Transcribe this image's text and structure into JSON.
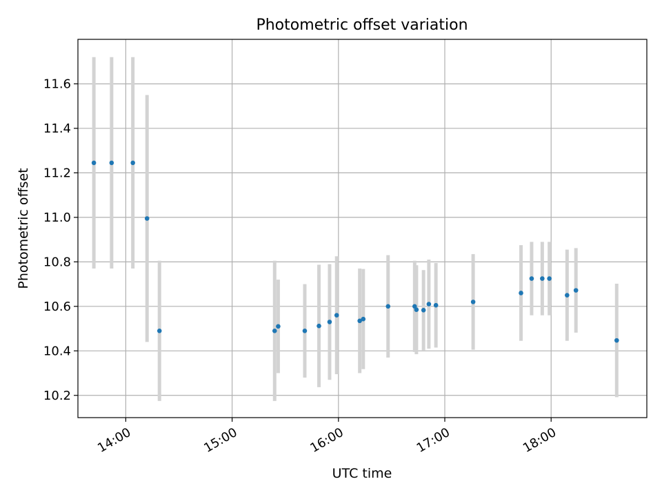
{
  "chart_data": {
    "type": "scatter",
    "title": "Photometric offset variation",
    "xlabel": "UTC time",
    "ylabel": "Photometric offset",
    "grid": true,
    "xlim": [
      "13:33",
      "18:54"
    ],
    "ylim": [
      10.1,
      11.8
    ],
    "xticks": [
      "14:00",
      "15:00",
      "16:00",
      "17:00",
      "18:00"
    ],
    "yticks": [
      "10.2",
      "10.4",
      "10.6",
      "10.8",
      "11.0",
      "11.2",
      "11.4",
      "11.6"
    ],
    "colors": {
      "points": "#1f77b4",
      "errorbars": "#d3d3d3",
      "grid": "#b0b0b0"
    },
    "series": [
      {
        "points": [
          {
            "x": "13:42",
            "y": 11.245,
            "err": 0.475
          },
          {
            "x": "13:52",
            "y": 11.245,
            "err": 0.475
          },
          {
            "x": "14:04",
            "y": 11.245,
            "err": 0.475
          },
          {
            "x": "14:12",
            "y": 10.995,
            "err": 0.555
          },
          {
            "x": "14:19",
            "y": 10.49,
            "err": 0.315
          },
          {
            "x": "15:24",
            "y": 10.49,
            "err": 0.315
          },
          {
            "x": "15:26",
            "y": 10.51,
            "err": 0.21
          },
          {
            "x": "15:41",
            "y": 10.49,
            "err": 0.21
          },
          {
            "x": "15:49",
            "y": 10.512,
            "err": 0.275
          },
          {
            "x": "15:55",
            "y": 10.53,
            "err": 0.26
          },
          {
            "x": "15:59",
            "y": 10.56,
            "err": 0.265
          },
          {
            "x": "16:12",
            "y": 10.535,
            "err": 0.235
          },
          {
            "x": "16:14",
            "y": 10.543,
            "err": 0.225
          },
          {
            "x": "16:28",
            "y": 10.6,
            "err": 0.23
          },
          {
            "x": "16:43",
            "y": 10.6,
            "err": 0.205
          },
          {
            "x": "16:44",
            "y": 10.585,
            "err": 0.2
          },
          {
            "x": "16:48",
            "y": 10.583,
            "err": 0.18
          },
          {
            "x": "16:51",
            "y": 10.61,
            "err": 0.2
          },
          {
            "x": "16:55",
            "y": 10.605,
            "err": 0.19
          },
          {
            "x": "17:16",
            "y": 10.62,
            "err": 0.215
          },
          {
            "x": "17:43",
            "y": 10.66,
            "err": 0.215
          },
          {
            "x": "17:49",
            "y": 10.725,
            "err": 0.165
          },
          {
            "x": "17:55",
            "y": 10.725,
            "err": 0.165
          },
          {
            "x": "17:59",
            "y": 10.725,
            "err": 0.165
          },
          {
            "x": "18:09",
            "y": 10.65,
            "err": 0.205
          },
          {
            "x": "18:14",
            "y": 10.672,
            "err": 0.19
          },
          {
            "x": "18:37",
            "y": 10.447,
            "err": 0.255
          }
        ]
      }
    ]
  }
}
